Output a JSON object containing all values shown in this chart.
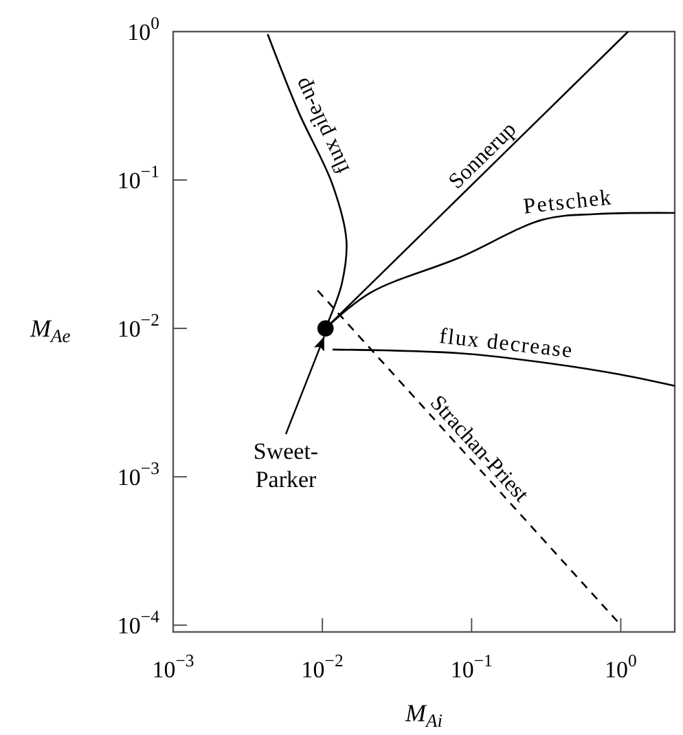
{
  "chart_data": {
    "type": "line",
    "xlabel": "M$_{Ai}$",
    "ylabel": "M$_{Ae}$",
    "log": "xy",
    "xlim": [
      0.001,
      2.3
    ],
    "ylim": [
      9e-05,
      1
    ],
    "xticks": [
      {
        "value": 0.001,
        "label": "10$^{−3}$"
      },
      {
        "value": 0.01,
        "label": "10$^{−2}$"
      },
      {
        "value": 0.1,
        "label": "10$^{−1}$"
      },
      {
        "value": 1,
        "label": "10$^{0}$"
      }
    ],
    "yticks": [
      {
        "value": 0.0001,
        "label": "10$^{−4}$"
      },
      {
        "value": 0.001,
        "label": "10$^{−3}$"
      },
      {
        "value": 0.01,
        "label": "10$^{−2}$"
      },
      {
        "value": 0.1,
        "label": "10$^{−1}$"
      },
      {
        "value": 1,
        "label": "10$^{0}$"
      }
    ],
    "grid": false,
    "marker": "none",
    "line_style": "solid",
    "series": [
      {
        "name": "flux pile-up",
        "color": "#000000",
        "x": [
          0.0105,
          0.0112,
          0.0135,
          0.0145,
          0.0117,
          0.0069,
          0.0043
        ],
        "values": [
          0.01,
          0.0117,
          0.02,
          0.039,
          0.093,
          0.29,
          0.96
        ]
      },
      {
        "name": "Sonnerup",
        "color": "#000000",
        "x": [
          0.0105,
          1.12
        ],
        "values": [
          0.01,
          1
        ]
      },
      {
        "name": "Petschek",
        "color": "#000000",
        "x": [
          0.0105,
          0.021,
          0.083,
          0.3,
          0.69,
          2.3
        ],
        "values": [
          0.01,
          0.0174,
          0.03,
          0.054,
          0.059,
          0.06
        ]
      },
      {
        "name": "flux decrease",
        "color": "#000000",
        "x": [
          0.0117,
          0.083,
          0.34,
          0.98,
          2.3
        ],
        "values": [
          0.0072,
          0.0068,
          0.0058,
          0.0049,
          0.0041
        ]
      },
      {
        "name": "Strachan-Priest",
        "color": "#000000",
        "line_style": "dashed",
        "x": [
          0.0093,
          1
        ],
        "values": [
          0.018,
          0.0001
        ]
      },
      {
        "type": "scatter",
        "marker": "circle",
        "color": "#000000",
        "x": [
          0.0105
        ],
        "values": [
          0.01
        ]
      }
    ],
    "annotations": [
      {
        "text": "Sweet-\nParker",
        "x": 0.0105,
        "y": 0.01
      }
    ]
  }
}
